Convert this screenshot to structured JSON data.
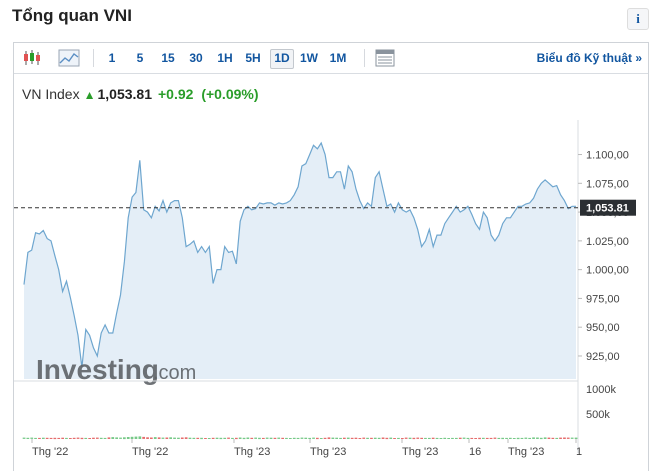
{
  "header": {
    "title": "Tổng quan VNI",
    "info_label": "i"
  },
  "toolbar": {
    "timeframes": [
      "1",
      "5",
      "15",
      "30",
      "1H",
      "5H",
      "1D",
      "1W",
      "1M"
    ],
    "active_timeframe": "1D",
    "technical_link": "Biểu đồ Kỹ thuật »"
  },
  "quote": {
    "name": "VN Index",
    "last": "1,053.81",
    "change": "+0.92",
    "change_pct": "(+0.09%)"
  },
  "watermark": {
    "brand": "Investing",
    "suffix": ".com"
  },
  "colors": {
    "up": "#2a9d2a",
    "down": "#e05252",
    "line": "#6ea6cf",
    "area": "#e4eef7",
    "link": "#1256a0"
  },
  "chart_data": {
    "type": "area",
    "y_ticks": [
      "1.100,00",
      "1.075,00",
      "1.050,00",
      "1.025,00",
      "1.000,00",
      "975,00",
      "950,00",
      "925,00"
    ],
    "y_tick_values": [
      1100,
      1075,
      1050,
      1025,
      1000,
      975,
      950,
      925
    ],
    "ylim": [
      905,
      1130
    ],
    "current_value": 1053.81,
    "current_label": "1,053.81",
    "x_labels": [
      "Thg '22",
      "Thg '22",
      "Thg '23",
      "Thg '23",
      "Thg '23",
      "16",
      "Thg '23",
      "1"
    ],
    "y": [
      987,
      1015,
      1017,
      1032,
      1031,
      1034,
      1027,
      1025,
      1012,
      1000,
      981,
      990,
      976,
      960,
      943,
      915,
      948,
      943,
      932,
      925,
      945,
      952,
      945,
      945,
      962,
      978,
      1007,
      1045,
      1063,
      1067,
      1095,
      1052,
      1050,
      1045,
      1055,
      1051,
      1060,
      1050,
      1058,
      1060,
      1060,
      1045,
      1020,
      1022,
      1025,
      1015,
      1020,
      1015,
      1020,
      988,
      1000,
      1000,
      1020,
      1015,
      1016,
      1005,
      1042,
      1052,
      1055,
      1052,
      1053,
      1058,
      1057,
      1058,
      1058,
      1056,
      1058,
      1057,
      1058,
      1060,
      1065,
      1072,
      1090,
      1092,
      1100,
      1108,
      1105,
      1110,
      1100,
      1080,
      1080,
      1085,
      1085,
      1070,
      1090,
      1085,
      1070,
      1060,
      1053,
      1058,
      1055,
      1080,
      1085,
      1070,
      1055,
      1057,
      1050,
      1058,
      1052,
      1050,
      1052,
      1045,
      1035,
      1020,
      1025,
      1035,
      1020,
      1030,
      1030,
      1040,
      1045,
      1050,
      1055,
      1050,
      1052,
      1055,
      1048,
      1040,
      1035,
      1050,
      1045,
      1030,
      1025,
      1030,
      1040,
      1045,
      1045,
      1050,
      1055,
      1055,
      1057,
      1058,
      1062,
      1070,
      1075,
      1078,
      1075,
      1072,
      1073,
      1065,
      1060,
      1053,
      1055,
      1055
    ],
    "volume": [
      27,
      24,
      27,
      22,
      23,
      26,
      24,
      21,
      25,
      22,
      26,
      23,
      20,
      24,
      27,
      25,
      23,
      20,
      26,
      27,
      24,
      22,
      33,
      38,
      31,
      27,
      35,
      40,
      44,
      48,
      51,
      41,
      34,
      30,
      38,
      33,
      27,
      30,
      34,
      28,
      26,
      30,
      34,
      26,
      24,
      24,
      25,
      20,
      20,
      24,
      26,
      25,
      24,
      27,
      23,
      25,
      30,
      25,
      30,
      24,
      27,
      25,
      23,
      27,
      26,
      24,
      27,
      24,
      22,
      20,
      24,
      22,
      27,
      26,
      23,
      27,
      25,
      20,
      24,
      33,
      28,
      26,
      23,
      26,
      28,
      24,
      26,
      20,
      27,
      24,
      24,
      26,
      24,
      30,
      25,
      28,
      20,
      23,
      20,
      27,
      26,
      25,
      27,
      24,
      21,
      21,
      26,
      22,
      20,
      24,
      20,
      22,
      23,
      26,
      27,
      22,
      23,
      20,
      25,
      24,
      23,
      21,
      27,
      22,
      25,
      23,
      24,
      20,
      25,
      22,
      27,
      23,
      33,
      30,
      25,
      31,
      28,
      24,
      22,
      28,
      30,
      27,
      27,
      28
    ],
    "volume_ticks": [
      "1000k",
      "500k"
    ],
    "volume_tick_values": [
      1000,
      500
    ],
    "volume_max": 1200
  }
}
